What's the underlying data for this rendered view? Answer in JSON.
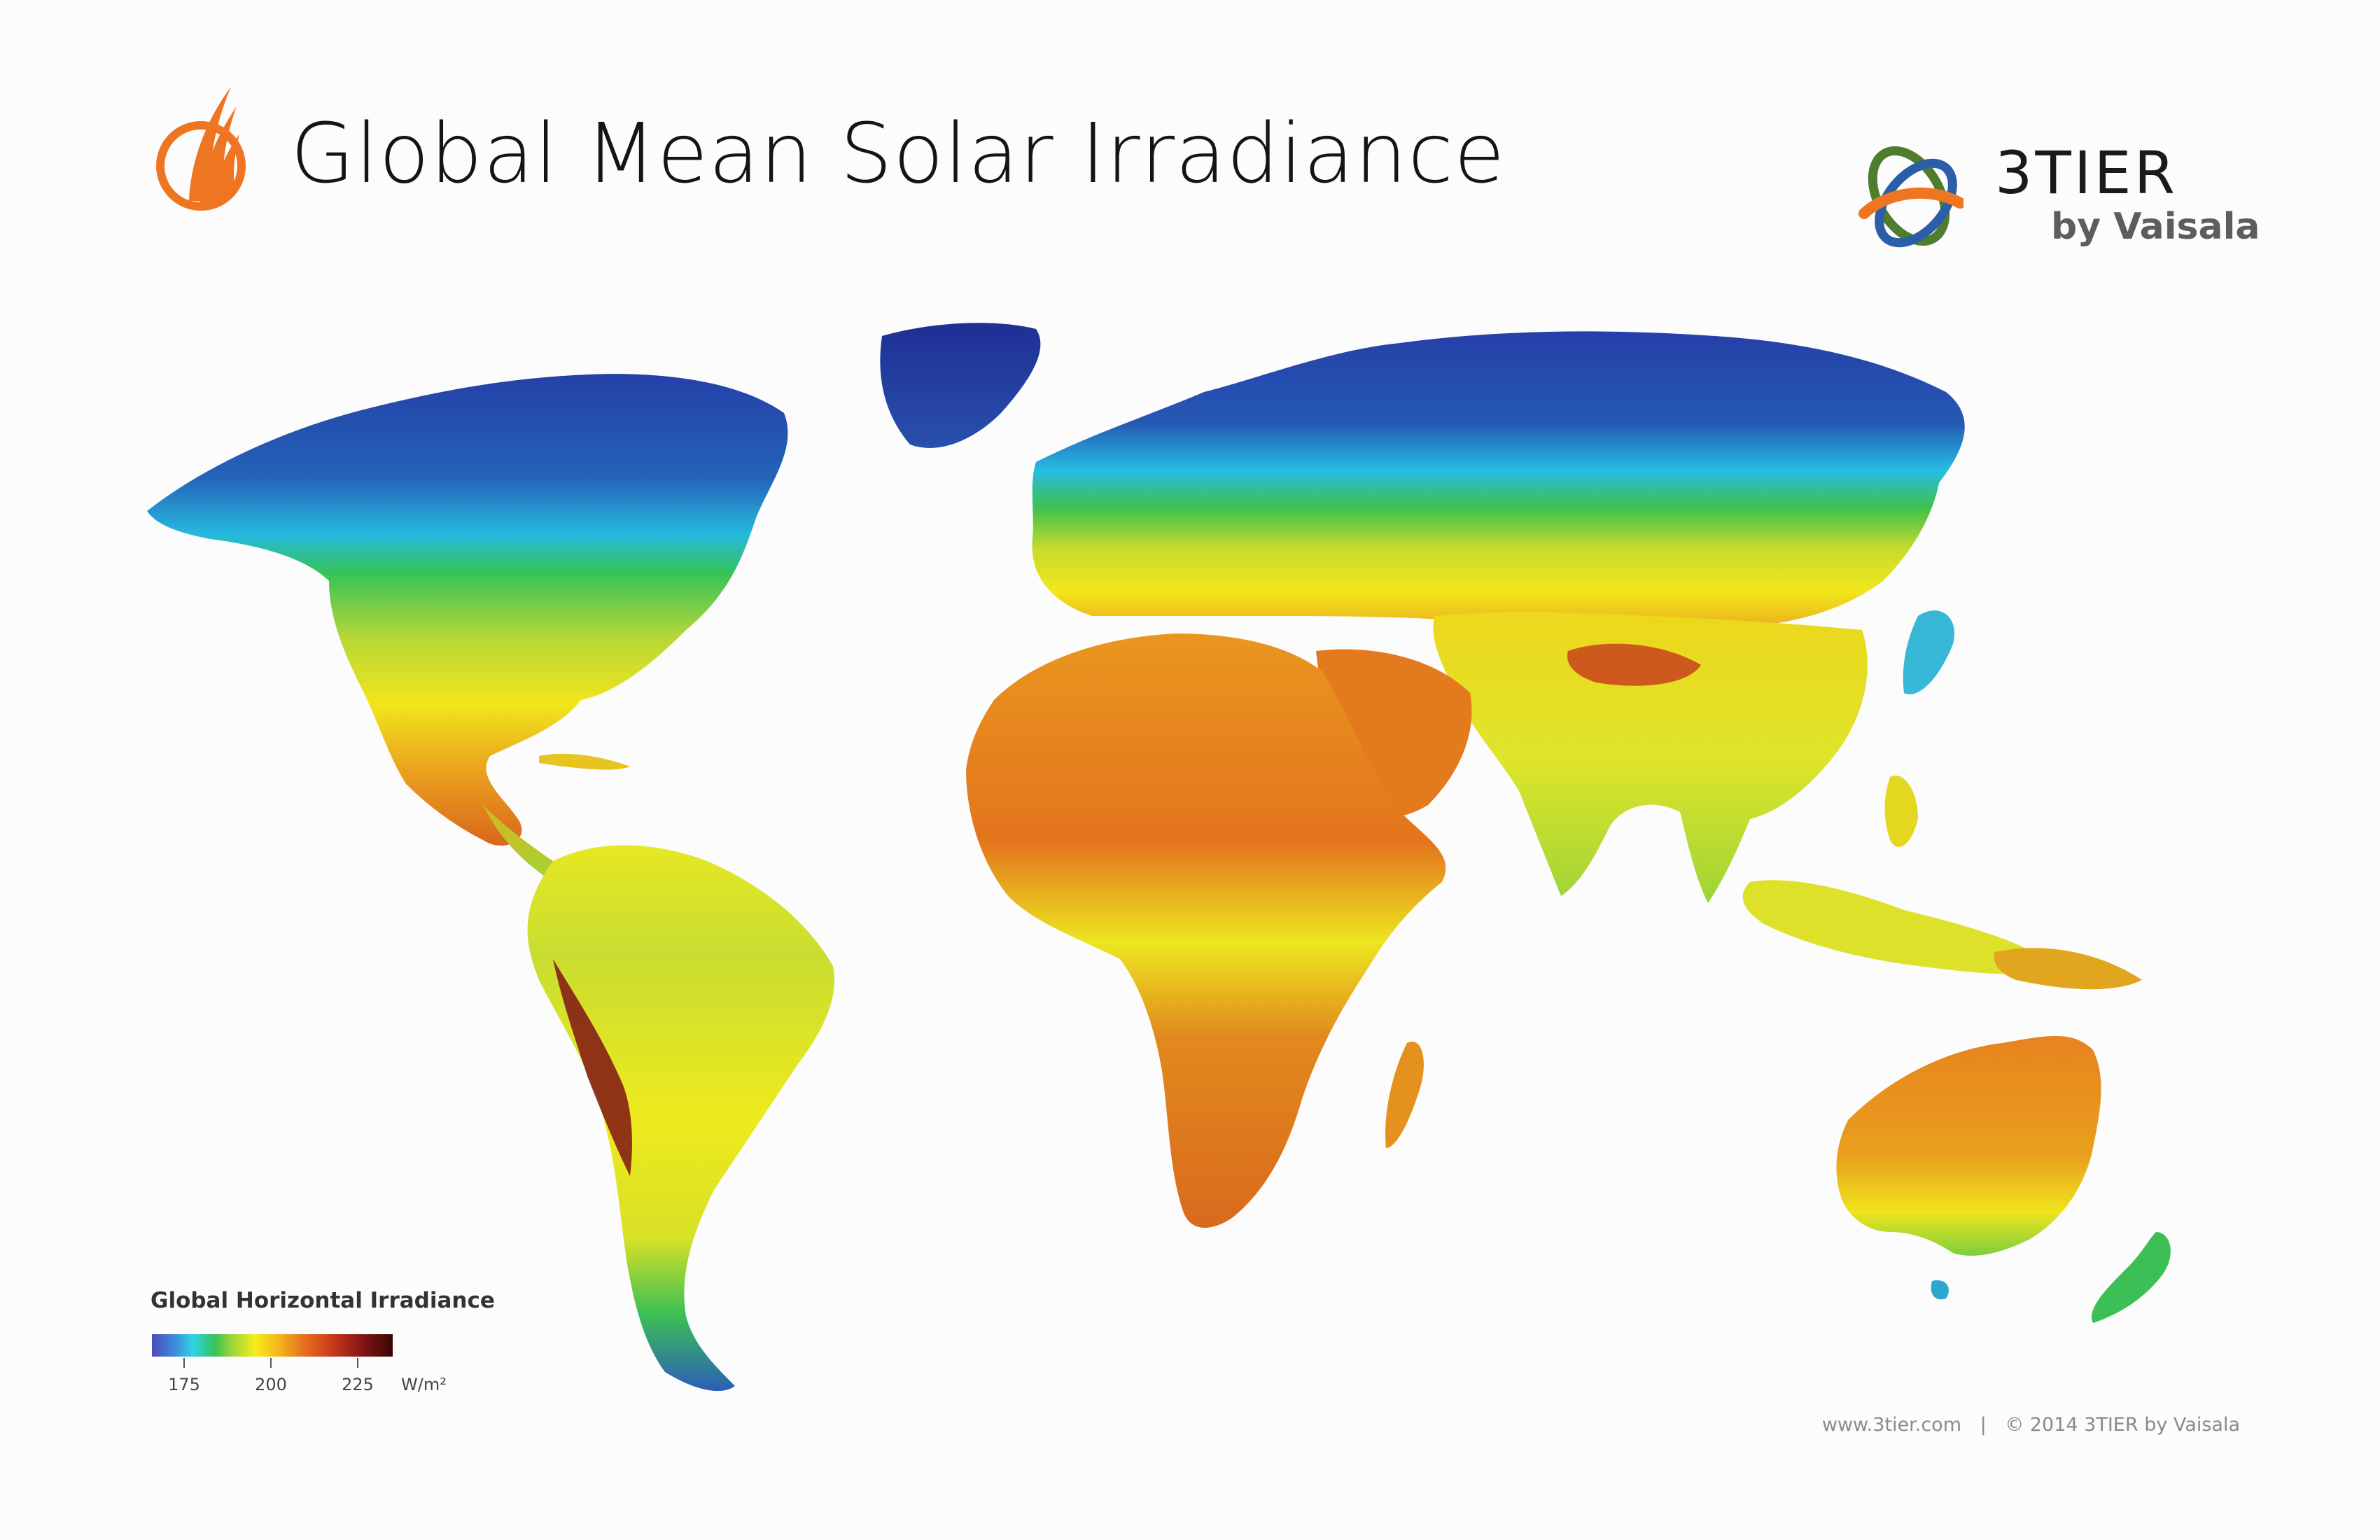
{
  "header": {
    "title": "Global Mean Solar Irradiance",
    "brand_name": "3TIER",
    "brand_sub": "by Vaisala"
  },
  "legend": {
    "title": "Global Horizontal Irradiance",
    "ticks": [
      "175",
      "200",
      "225"
    ],
    "unit": "W/m²"
  },
  "footer": {
    "website": "www.3tier.com",
    "separator": "|",
    "copyright": "© 2014 3TIER by Vaisala"
  },
  "icons": {
    "title_logo": "solar-flame-icon",
    "brand_logo": "3tier-orbit-logo"
  },
  "colors": {
    "brand_orange": "#ee7623",
    "brand_green": "#4e7d2d",
    "brand_blue": "#2b5ea8",
    "low": "#2a3fa8",
    "cyan": "#22c3e0",
    "green": "#3cbf4b",
    "yellow": "#f3ea17",
    "orange": "#ea8520",
    "red": "#c8381b",
    "max": "#3b0606"
  }
}
